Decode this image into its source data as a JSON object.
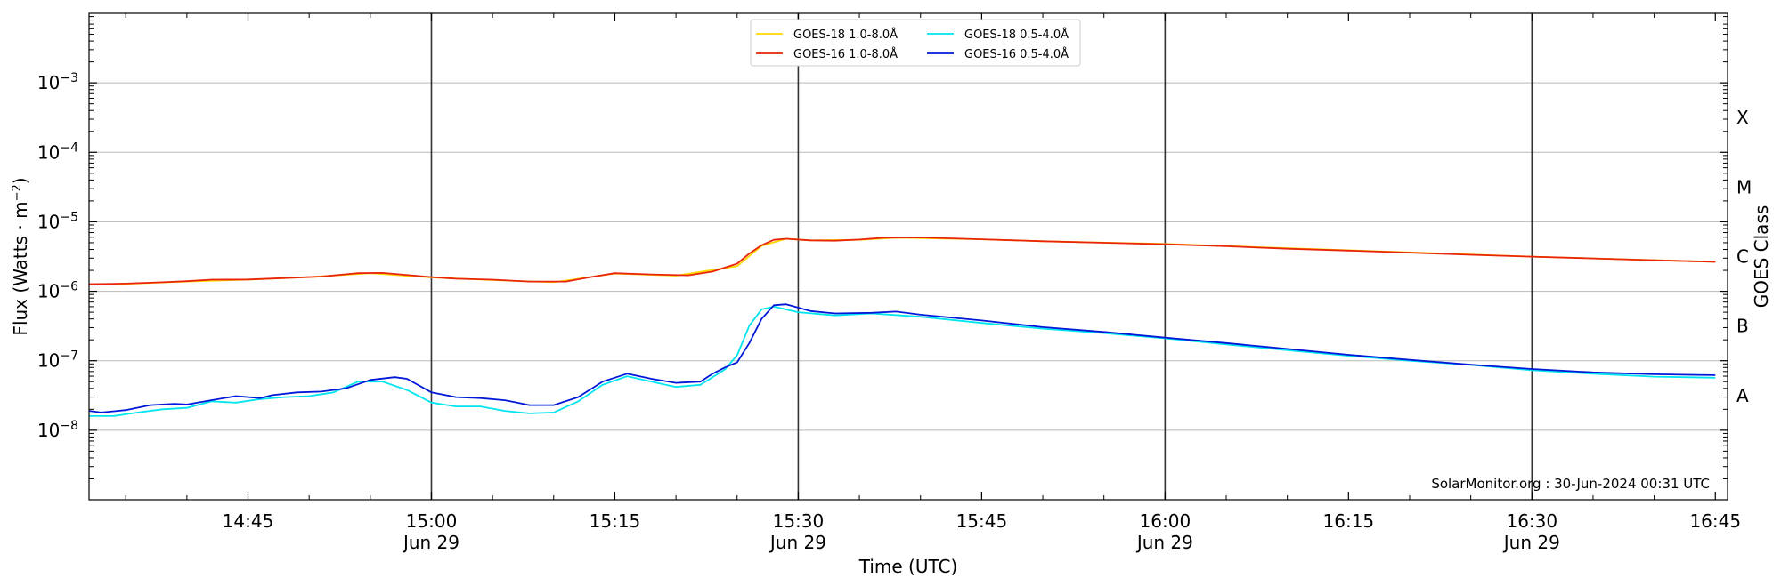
{
  "chart_data": {
    "type": "line",
    "xlabel": "Time (UTC)",
    "ylabel": "Flux (Watts · m",
    "ylabel_superscript": "−2",
    "ylabel_close": ")",
    "y2label": "GOES Class",
    "yscale": "log",
    "ylim": [
      1e-09,
      0.01
    ],
    "xlim": [
      "14:32",
      "16:46"
    ],
    "x_ticks": [
      {
        "time": "14:45",
        "line1": "14:45",
        "line2": ""
      },
      {
        "time": "15:00",
        "line1": "15:00",
        "line2": "Jun 29"
      },
      {
        "time": "15:15",
        "line1": "15:15",
        "line2": ""
      },
      {
        "time": "15:30",
        "line1": "15:30",
        "line2": "Jun 29"
      },
      {
        "time": "15:45",
        "line1": "15:45",
        "line2": ""
      },
      {
        "time": "16:00",
        "line1": "16:00",
        "line2": "Jun 29"
      },
      {
        "time": "16:15",
        "line1": "16:15",
        "line2": ""
      },
      {
        "time": "16:30",
        "line1": "16:30",
        "line2": "Jun 29"
      },
      {
        "time": "16:45",
        "line1": "16:45",
        "line2": ""
      }
    ],
    "y_ticks": [
      {
        "value": 1e-08,
        "base": "10",
        "exp": "−8"
      },
      {
        "value": 1e-07,
        "base": "10",
        "exp": "−7"
      },
      {
        "value": 1e-06,
        "base": "10",
        "exp": "−6"
      },
      {
        "value": 1e-05,
        "base": "10",
        "exp": "−5"
      },
      {
        "value": 0.0001,
        "base": "10",
        "exp": "−4"
      },
      {
        "value": 0.001,
        "base": "10",
        "exp": "−3"
      }
    ],
    "goes_classes": [
      {
        "label": "A",
        "value": 3.16e-08
      },
      {
        "label": "B",
        "value": 3.16e-07
      },
      {
        "label": "C",
        "value": 3.16e-06
      },
      {
        "label": "M",
        "value": 3.16e-05
      },
      {
        "label": "X",
        "value": 0.000316
      }
    ],
    "vertical_lines": [
      "15:00",
      "15:30",
      "16:00",
      "16:30"
    ],
    "grid": "horizontal at decades",
    "legend_position": "top-center",
    "legend": [
      {
        "label": "GOES-18 1.0-8.0Å",
        "color": "#ffd700",
        "series": 0
      },
      {
        "label": "GOES-18 0.5-4.0Å",
        "color": "#00e5ee",
        "series": 2
      },
      {
        "label": "GOES-16 1.0-8.0Å",
        "color": "#e8250a",
        "series": 1
      },
      {
        "label": "GOES-16 0.5-4.0Å",
        "color": "#0018d8",
        "series": 3
      }
    ],
    "annotation": "SolarMonitor.org : 30-Jun-2024 00:31 UTC",
    "series": [
      {
        "name": "GOES-18 1.0-8.0Å",
        "color": "#ffd700",
        "points": [
          [
            "14:32",
            1.25e-06
          ],
          [
            "14:35",
            1.28e-06
          ],
          [
            "14:40",
            1.38e-06
          ],
          [
            "14:45",
            1.47e-06
          ],
          [
            "14:50",
            1.6e-06
          ],
          [
            "14:55",
            1.82e-06
          ],
          [
            "15:00",
            1.58e-06
          ],
          [
            "15:05",
            1.45e-06
          ],
          [
            "15:10",
            1.35e-06
          ],
          [
            "15:15",
            1.8e-06
          ],
          [
            "15:20",
            1.68e-06
          ],
          [
            "15:25",
            2.3e-06
          ],
          [
            "15:27",
            4.5e-06
          ],
          [
            "15:29",
            5.7e-06
          ],
          [
            "15:31",
            5.4e-06
          ],
          [
            "15:35",
            5.5e-06
          ],
          [
            "15:38",
            5.9e-06
          ],
          [
            "15:45",
            5.6e-06
          ],
          [
            "15:50",
            5.25e-06
          ],
          [
            "16:00",
            4.8e-06
          ],
          [
            "16:15",
            3.9e-06
          ],
          [
            "16:30",
            3.15e-06
          ],
          [
            "16:45",
            2.65e-06
          ]
        ]
      },
      {
        "name": "GOES-16 1.0-8.0Å",
        "color": "#e8250a",
        "points": [
          [
            "14:32",
            1.27e-06
          ],
          [
            "14:35",
            1.29e-06
          ],
          [
            "14:38",
            1.35e-06
          ],
          [
            "14:40",
            1.4e-06
          ],
          [
            "14:42",
            1.47e-06
          ],
          [
            "14:45",
            1.48e-06
          ],
          [
            "14:48",
            1.55e-06
          ],
          [
            "14:51",
            1.63e-06
          ],
          [
            "14:54",
            1.82e-06
          ],
          [
            "14:56",
            1.84e-06
          ],
          [
            "15:00",
            1.6e-06
          ],
          [
            "15:02",
            1.52e-06
          ],
          [
            "15:05",
            1.47e-06
          ],
          [
            "15:08",
            1.38e-06
          ],
          [
            "15:11",
            1.38e-06
          ],
          [
            "15:13",
            1.6e-06
          ],
          [
            "15:15",
            1.82e-06
          ],
          [
            "15:18",
            1.75e-06
          ],
          [
            "15:21",
            1.7e-06
          ],
          [
            "15:23",
            1.92e-06
          ],
          [
            "15:25",
            2.5e-06
          ],
          [
            "15:26",
            3.5e-06
          ],
          [
            "15:27",
            4.6e-06
          ],
          [
            "15:28",
            5.5e-06
          ],
          [
            "15:29",
            5.7e-06
          ],
          [
            "15:31",
            5.4e-06
          ],
          [
            "15:33",
            5.35e-06
          ],
          [
            "15:35",
            5.55e-06
          ],
          [
            "15:37",
            5.9e-06
          ],
          [
            "15:40",
            5.95e-06
          ],
          [
            "15:45",
            5.6e-06
          ],
          [
            "15:50",
            5.25e-06
          ],
          [
            "15:55",
            5e-06
          ],
          [
            "16:00",
            4.75e-06
          ],
          [
            "16:05",
            4.45e-06
          ],
          [
            "16:10",
            4.1e-06
          ],
          [
            "16:15",
            3.85e-06
          ],
          [
            "16:20",
            3.6e-06
          ],
          [
            "16:25",
            3.35e-06
          ],
          [
            "16:30",
            3.15e-06
          ],
          [
            "16:35",
            2.97e-06
          ],
          [
            "16:40",
            2.8e-06
          ],
          [
            "16:45",
            2.65e-06
          ]
        ]
      },
      {
        "name": "GOES-18 0.5-4.0Å",
        "color": "#00e5ee",
        "points": [
          [
            "14:32",
            1.6e-08
          ],
          [
            "14:34",
            1.6e-08
          ],
          [
            "14:36",
            1.8e-08
          ],
          [
            "14:38",
            2e-08
          ],
          [
            "14:40",
            2.1e-08
          ],
          [
            "14:42",
            2.6e-08
          ],
          [
            "14:44",
            2.5e-08
          ],
          [
            "14:46",
            2.8e-08
          ],
          [
            "14:48",
            3e-08
          ],
          [
            "14:50",
            3.1e-08
          ],
          [
            "14:52",
            3.5e-08
          ],
          [
            "14:54",
            5e-08
          ],
          [
            "14:56",
            5e-08
          ],
          [
            "14:58",
            3.8e-08
          ],
          [
            "15:00",
            2.5e-08
          ],
          [
            "15:02",
            2.2e-08
          ],
          [
            "15:04",
            2.2e-08
          ],
          [
            "15:06",
            1.9e-08
          ],
          [
            "15:08",
            1.75e-08
          ],
          [
            "15:10",
            1.8e-08
          ],
          [
            "15:12",
            2.6e-08
          ],
          [
            "15:14",
            4.5e-08
          ],
          [
            "15:16",
            6e-08
          ],
          [
            "15:18",
            5e-08
          ],
          [
            "15:20",
            4.2e-08
          ],
          [
            "15:22",
            4.5e-08
          ],
          [
            "15:24",
            7.5e-08
          ],
          [
            "15:25",
            1.2e-07
          ],
          [
            "15:26",
            3.2e-07
          ],
          [
            "15:27",
            5.5e-07
          ],
          [
            "15:28",
            6e-07
          ],
          [
            "15:30",
            5e-07
          ],
          [
            "15:33",
            4.5e-07
          ],
          [
            "15:36",
            4.8e-07
          ],
          [
            "15:40",
            4.3e-07
          ],
          [
            "15:45",
            3.5e-07
          ],
          [
            "15:50",
            2.9e-07
          ],
          [
            "15:55",
            2.5e-07
          ],
          [
            "16:00",
            2.1e-07
          ],
          [
            "16:05",
            1.72e-07
          ],
          [
            "16:10",
            1.42e-07
          ],
          [
            "16:15",
            1.18e-07
          ],
          [
            "16:20",
            1e-07
          ],
          [
            "16:25",
            8.7e-08
          ],
          [
            "16:30",
            7.3e-08
          ],
          [
            "16:35",
            6.5e-08
          ],
          [
            "16:40",
            5.9e-08
          ],
          [
            "16:45",
            5.7e-08
          ]
        ]
      },
      {
        "name": "GOES-16 0.5-4.0Å",
        "color": "#0018d8",
        "points": [
          [
            "14:32",
            1.9e-08
          ],
          [
            "14:33",
            1.8e-08
          ],
          [
            "14:35",
            1.95e-08
          ],
          [
            "14:37",
            2.3e-08
          ],
          [
            "14:39",
            2.4e-08
          ],
          [
            "14:40",
            2.35e-08
          ],
          [
            "14:42",
            2.7e-08
          ],
          [
            "14:44",
            3.1e-08
          ],
          [
            "14:46",
            2.9e-08
          ],
          [
            "14:47",
            3.2e-08
          ],
          [
            "14:49",
            3.5e-08
          ],
          [
            "14:51",
            3.6e-08
          ],
          [
            "14:53",
            4e-08
          ],
          [
            "14:55",
            5.3e-08
          ],
          [
            "14:57",
            5.8e-08
          ],
          [
            "14:58",
            5.5e-08
          ],
          [
            "15:00",
            3.5e-08
          ],
          [
            "15:02",
            3e-08
          ],
          [
            "15:04",
            2.9e-08
          ],
          [
            "15:06",
            2.7e-08
          ],
          [
            "15:07",
            2.5e-08
          ],
          [
            "15:08",
            2.3e-08
          ],
          [
            "15:10",
            2.3e-08
          ],
          [
            "15:12",
            3e-08
          ],
          [
            "15:14",
            5e-08
          ],
          [
            "15:16",
            6.5e-08
          ],
          [
            "15:18",
            5.5e-08
          ],
          [
            "15:20",
            4.8e-08
          ],
          [
            "15:22",
            5e-08
          ],
          [
            "15:23",
            6.5e-08
          ],
          [
            "15:24",
            8e-08
          ],
          [
            "15:25",
            9.5e-08
          ],
          [
            "15:26",
            1.8e-07
          ],
          [
            "15:27",
            4e-07
          ],
          [
            "15:28",
            6.3e-07
          ],
          [
            "15:29",
            6.5e-07
          ],
          [
            "15:31",
            5.2e-07
          ],
          [
            "15:33",
            4.8e-07
          ],
          [
            "15:36",
            4.9e-07
          ],
          [
            "15:38",
            5.1e-07
          ],
          [
            "15:40",
            4.6e-07
          ],
          [
            "15:45",
            3.8e-07
          ],
          [
            "15:50",
            3.05e-07
          ],
          [
            "15:55",
            2.6e-07
          ],
          [
            "16:00",
            2.15e-07
          ],
          [
            "16:05",
            1.8e-07
          ],
          [
            "16:10",
            1.48e-07
          ],
          [
            "16:15",
            1.22e-07
          ],
          [
            "16:20",
            1.03e-07
          ],
          [
            "16:25",
            8.8e-08
          ],
          [
            "16:30",
            7.6e-08
          ],
          [
            "16:35",
            6.8e-08
          ],
          [
            "16:40",
            6.4e-08
          ],
          [
            "16:45",
            6.2e-08
          ]
        ]
      }
    ]
  }
}
